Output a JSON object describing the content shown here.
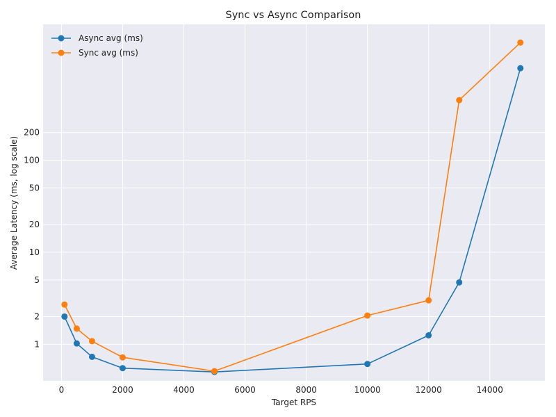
{
  "chart_data": {
    "type": "line",
    "title": "Sync vs Async Comparison",
    "xlabel": "Target RPS",
    "ylabel": "Average Latency (ms, log scale)",
    "x_scale": "linear",
    "y_scale": "log",
    "xlim": [
      -600,
      15800
    ],
    "ylim": [
      0.4,
      3000
    ],
    "x_ticks": [
      0,
      2000,
      4000,
      6000,
      8000,
      10000,
      12000,
      14000
    ],
    "y_ticks": [
      1,
      2,
      5,
      10,
      20,
      50,
      100,
      200
    ],
    "grid": true,
    "legend_position": "top-left",
    "background": "#eaeaf2",
    "series": [
      {
        "name": "Async avg (ms)",
        "color": "#1f77b4",
        "marker": "circle",
        "x": [
          100,
          500,
          1000,
          2000,
          5000,
          10000,
          12000,
          13000,
          15000
        ],
        "y": [
          2.0,
          1.02,
          0.73,
          0.55,
          0.5,
          0.61,
          1.25,
          4.7,
          1000
        ]
      },
      {
        "name": "Sync avg (ms)",
        "color": "#ff7f0e",
        "marker": "circle",
        "x": [
          100,
          500,
          1000,
          2000,
          5000,
          10000,
          12000,
          13000,
          15000
        ],
        "y": [
          2.7,
          1.48,
          1.08,
          0.72,
          0.51,
          2.05,
          3.0,
          450,
          1900
        ]
      }
    ]
  }
}
